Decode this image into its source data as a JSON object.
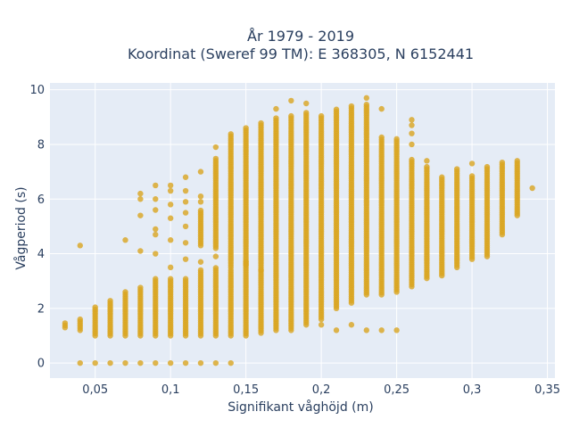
{
  "chart_data": {
    "type": "scatter",
    "title_lines": [
      "År 1979 - 2019",
      "Koordinat (Sweref 99 TM): E 368305, N 6152441"
    ],
    "xlabel": "Signifikant våghöjd (m)",
    "ylabel": "Vågperiod (s)",
    "xlim": [
      0.02,
      0.355
    ],
    "ylim": [
      -0.55,
      10.25
    ],
    "x_ticks": [
      0.05,
      0.1,
      0.15,
      0.2,
      0.25,
      0.3,
      0.35
    ],
    "x_tick_labels": [
      "0,05",
      "0,1",
      "0,15",
      "0,2",
      "0,25",
      "0,3",
      "0,35"
    ],
    "y_ticks": [
      0,
      2,
      4,
      6,
      8,
      10
    ],
    "y_tick_labels": [
      "0",
      "2",
      "4",
      "6",
      "8",
      "10"
    ],
    "grid": true,
    "colors": {
      "marker": "#DAA520",
      "plot_bg": "#E5ECF6",
      "grid": "#ffffff",
      "text": "#2a3f5f"
    },
    "columns": [
      {
        "x": 0.03,
        "segments": [
          [
            1.3,
            1.5
          ]
        ],
        "points": []
      },
      {
        "x": 0.04,
        "segments": [
          [
            1.2,
            1.6
          ]
        ],
        "points": [
          0,
          4.3
        ]
      },
      {
        "x": 0.05,
        "segments": [
          [
            1.0,
            2.1
          ]
        ],
        "points": [
          0
        ]
      },
      {
        "x": 0.06,
        "segments": [
          [
            1.0,
            2.3
          ]
        ],
        "points": [
          0
        ]
      },
      {
        "x": 0.07,
        "segments": [
          [
            1.0,
            2.6
          ]
        ],
        "points": [
          0,
          4.5
        ]
      },
      {
        "x": 0.08,
        "segments": [
          [
            1.0,
            2.8
          ]
        ],
        "points": [
          0,
          4.1,
          5.4,
          6.0,
          6.2
        ]
      },
      {
        "x": 0.09,
        "segments": [
          [
            1.0,
            3.1
          ]
        ],
        "points": [
          0,
          4.0,
          4.7,
          4.9,
          5.6,
          6.0,
          6.5
        ]
      },
      {
        "x": 0.1,
        "segments": [
          [
            1.0,
            3.1
          ]
        ],
        "points": [
          0,
          3.5,
          4.5,
          5.3,
          5.8,
          6.3,
          6.5
        ]
      },
      {
        "x": 0.11,
        "segments": [
          [
            1.0,
            3.1
          ]
        ],
        "points": [
          0,
          3.8,
          4.4,
          5.0,
          5.5,
          5.9,
          6.3,
          6.8
        ]
      },
      {
        "x": 0.12,
        "segments": [
          [
            1.0,
            3.4
          ],
          [
            4.3,
            5.6
          ]
        ],
        "points": [
          0,
          3.7,
          5.9,
          6.1,
          7.0
        ]
      },
      {
        "x": 0.13,
        "segments": [
          [
            1.0,
            3.5
          ],
          [
            4.2,
            7.5
          ]
        ],
        "points": [
          0,
          3.9,
          7.9
        ]
      },
      {
        "x": 0.14,
        "segments": [
          [
            1.0,
            3.4
          ],
          [
            3.5,
            8.4
          ]
        ],
        "points": [
          0
        ]
      },
      {
        "x": 0.15,
        "segments": [
          [
            1.0,
            8.6
          ]
        ],
        "points": [
          3.6,
          3.7
        ]
      },
      {
        "x": 0.16,
        "segments": [
          [
            1.1,
            8.8
          ]
        ],
        "points": [
          3.4
        ]
      },
      {
        "x": 0.17,
        "segments": [
          [
            1.2,
            9.0
          ]
        ],
        "points": [
          9.3
        ]
      },
      {
        "x": 0.18,
        "segments": [
          [
            1.2,
            9.1
          ]
        ],
        "points": [
          9.6
        ]
      },
      {
        "x": 0.19,
        "segments": [
          [
            1.4,
            9.2
          ]
        ],
        "points": [
          9.5
        ]
      },
      {
        "x": 0.2,
        "segments": [
          [
            1.6,
            9.1
          ]
        ],
        "points": [
          1.4
        ]
      },
      {
        "x": 0.21,
        "segments": [
          [
            2.0,
            9.3
          ]
        ],
        "points": [
          1.2
        ]
      },
      {
        "x": 0.22,
        "segments": [
          [
            2.2,
            9.4
          ]
        ],
        "points": [
          1.4
        ]
      },
      {
        "x": 0.23,
        "segments": [
          [
            2.5,
            9.5
          ]
        ],
        "points": [
          1.2,
          9.7
        ]
      },
      {
        "x": 0.24,
        "segments": [
          [
            2.5,
            8.3
          ]
        ],
        "points": [
          1.2,
          9.3
        ]
      },
      {
        "x": 0.25,
        "segments": [
          [
            2.6,
            8.2
          ]
        ],
        "points": [
          1.2
        ]
      },
      {
        "x": 0.26,
        "segments": [
          [
            2.8,
            7.5
          ]
        ],
        "points": [
          8.0,
          8.4,
          8.7,
          8.9
        ]
      },
      {
        "x": 0.27,
        "segments": [
          [
            3.1,
            7.2
          ]
        ],
        "points": [
          7.4
        ]
      },
      {
        "x": 0.28,
        "segments": [
          [
            3.2,
            6.8
          ]
        ],
        "points": []
      },
      {
        "x": 0.29,
        "segments": [
          [
            3.5,
            7.1
          ]
        ],
        "points": []
      },
      {
        "x": 0.3,
        "segments": [
          [
            3.8,
            6.9
          ]
        ],
        "points": [
          7.3
        ]
      },
      {
        "x": 0.31,
        "segments": [
          [
            3.9,
            7.2
          ]
        ],
        "points": []
      },
      {
        "x": 0.32,
        "segments": [
          [
            4.7,
            7.4
          ]
        ],
        "points": []
      },
      {
        "x": 0.33,
        "segments": [
          [
            5.4,
            7.4
          ]
        ],
        "points": []
      },
      {
        "x": 0.34,
        "segments": [],
        "points": [
          6.4
        ]
      }
    ]
  }
}
